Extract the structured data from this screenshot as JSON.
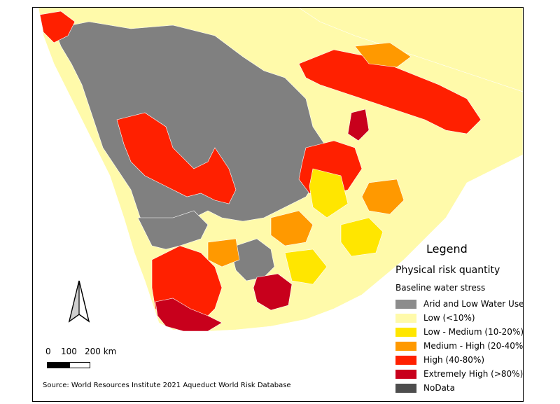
{
  "legend": {
    "title": "Legend",
    "subtitle": "Physical risk quantity",
    "group": "Baseline water stress",
    "items": [
      {
        "label": "Arid and Low Water Use",
        "color": "#8c8c8c"
      },
      {
        "label": "Low (<10%)",
        "color": "#fffaaa"
      },
      {
        "label": "Low - Medium (10-20%)",
        "color": "#ffe600"
      },
      {
        "label": "Medium - High (20-40%)",
        "color": "#ff9900"
      },
      {
        "label": "High (40-80%)",
        "color": "#ff2000"
      },
      {
        "label": "Extremely High (>80%)",
        "color": "#c8001c"
      },
      {
        "label": "NoData",
        "color": "#4d4d4d"
      }
    ]
  },
  "scalebar": {
    "ticks": [
      "0",
      "100",
      "200 km"
    ]
  },
  "source": "Source: World Resources Institute 2021 Aqueduct World Risk Database",
  "colors": {
    "ocean": "#ffffff",
    "border": "#000000"
  },
  "north_arrow": "north-arrow-icon"
}
